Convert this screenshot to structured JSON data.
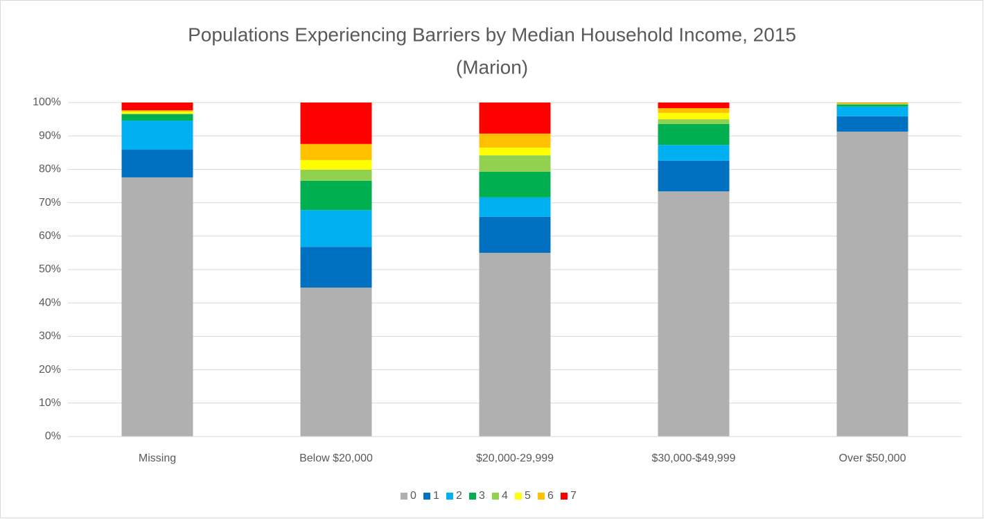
{
  "chart_data": {
    "type": "stacked_bar",
    "title": "Populations Experiencing Barriers by Median Household Income, 2015",
    "subtitle": "(Marion)",
    "categories": [
      "Missing",
      "Below $20,000",
      "$20,000-29,999",
      "$30,000-$49,999",
      "Over $50,000"
    ],
    "series": [
      {
        "name": "0",
        "color": "#b0b0b0",
        "values": [
          77.6,
          44.6,
          55.0,
          73.4,
          91.3
        ]
      },
      {
        "name": "1",
        "color": "#0070c0",
        "values": [
          8.3,
          12.2,
          10.8,
          9.2,
          4.6
        ]
      },
      {
        "name": "2",
        "color": "#00b0f0",
        "values": [
          8.7,
          11.0,
          5.8,
          4.7,
          2.9
        ]
      },
      {
        "name": "3",
        "color": "#00b050",
        "values": [
          1.9,
          8.8,
          7.7,
          6.3,
          0.6
        ]
      },
      {
        "name": "4",
        "color": "#92d050",
        "values": [
          0.2,
          3.3,
          4.9,
          1.4,
          0.3
        ]
      },
      {
        "name": "5",
        "color": "#ffff00",
        "values": [
          0.6,
          2.9,
          2.3,
          1.9,
          0.2
        ]
      },
      {
        "name": "6",
        "color": "#ffc000",
        "values": [
          0.4,
          4.8,
          4.2,
          1.4,
          0.0
        ]
      },
      {
        "name": "7",
        "color": "#ff0000",
        "values": [
          2.3,
          12.4,
          9.3,
          1.7,
          0.1
        ]
      }
    ],
    "ylim": [
      0,
      100
    ],
    "yticks": [
      {
        "value": 0,
        "label": "0%"
      },
      {
        "value": 10,
        "label": "10%"
      },
      {
        "value": 20,
        "label": "20%"
      },
      {
        "value": 30,
        "label": "30%"
      },
      {
        "value": 40,
        "label": "40%"
      },
      {
        "value": 50,
        "label": "50%"
      },
      {
        "value": 60,
        "label": "60%"
      },
      {
        "value": 70,
        "label": "70%"
      },
      {
        "value": 80,
        "label": "80%"
      },
      {
        "value": 90,
        "label": "90%"
      },
      {
        "value": 100,
        "label": "100%"
      }
    ],
    "grid": true,
    "legend": "bottom"
  }
}
